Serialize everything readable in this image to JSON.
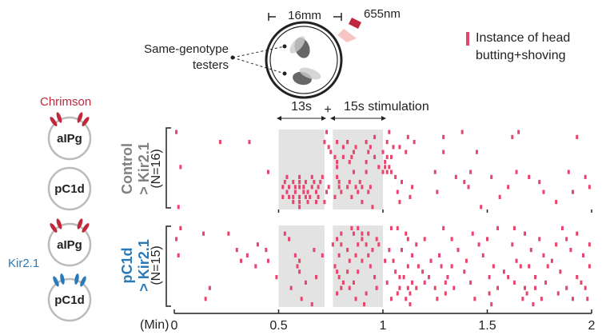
{
  "chart_data": {
    "type": "raster",
    "xlim": [
      0,
      2
    ],
    "xticks": [
      0,
      0.5,
      1,
      1.5,
      2
    ],
    "x_label": "(Min)",
    "shaded": [
      [
        0.5,
        0.72
      ],
      [
        0.76,
        1
      ]
    ],
    "color": "#e8456e",
    "annotations": {
      "window_1": "13s",
      "plus": "+",
      "window_2": "15s stimulation"
    },
    "legend": [
      "Instance of head",
      "butting+shoving"
    ],
    "panels": [
      {
        "label": [
          "Control",
          "> Kir2.1"
        ],
        "n_label": "(N=16)",
        "rows": [
          [
            0.01,
            0.73,
            1.03,
            1.38,
            1.65
          ],
          [
            0.96,
            1.12,
            1.29,
            1.62,
            1.93
          ],
          [
            0.22,
            0.36,
            0.72,
            0.78,
            0.83,
            0.92,
            1.02,
            1.15
          ],
          [
            0.74,
            0.81,
            0.87,
            0.94,
            1.05,
            1.08
          ],
          [
            0.75,
            0.86,
            0.93,
            1.0,
            1.11,
            1.29,
            1.45
          ],
          [
            0.77,
            0.81,
            0.85,
            0.96,
            1.02,
            1.04
          ],
          [
            0.78,
            0.84,
            0.92,
            1.01
          ],
          [
            0.03,
            0.78,
            0.98,
            1.01,
            1.03
          ],
          [
            0.45,
            0.86,
            0.92,
            1.0,
            1.02,
            1.04,
            1.25,
            1.42,
            1.64,
            1.89
          ],
          [
            0.54,
            0.6,
            0.66,
            0.71,
            0.78,
            1.06,
            1.35,
            1.52,
            1.7,
            1.97
          ],
          [
            0.53,
            0.57,
            0.6,
            0.63,
            0.67,
            0.7,
            0.79,
            0.84,
            0.89,
            1.09,
            1.39,
            1.75
          ],
          [
            0.52,
            0.55,
            0.58,
            0.6,
            0.62,
            0.66,
            0.69,
            0.74,
            0.79,
            0.83,
            0.87,
            0.9,
            0.94,
            1.14,
            1.41,
            1.6,
            1.99
          ],
          [
            0.54,
            0.58,
            0.62,
            0.64,
            0.68,
            0.73,
            0.8,
            0.88,
            0.93,
            1.07,
            1.26,
            1.77,
            1.91
          ],
          [
            0.52,
            0.55,
            0.57,
            0.6,
            0.63,
            0.65,
            0.69,
            0.77,
            0.85,
            1.13,
            1.56
          ],
          [
            0.57,
            0.6,
            0.64,
            0.68,
            0.72,
            0.9,
            1.08,
            1.83
          ],
          [
            0.02,
            0.6,
            0.95,
            1.47
          ]
        ]
      },
      {
        "label": [
          "pC1d",
          "> Kir2.1"
        ],
        "n_label": "(N=15)",
        "rows": [
          [
            0.03,
            0.85,
            0.88,
            1.04,
            1.07,
            1.29,
            1.55,
            1.63,
            1.86
          ],
          [
            0.14,
            0.26,
            0.53,
            0.8,
            0.86,
            0.9,
            0.93,
            1.11,
            1.43,
            1.68,
            1.93
          ],
          [
            0.01,
            0.55,
            0.78,
            0.9,
            0.97,
            1.12,
            1.2,
            1.33,
            1.5,
            1.75,
            1.88
          ],
          [
            0.4,
            0.76,
            0.8,
            0.88,
            0.92,
            0.98,
            1.16,
            1.46,
            1.62,
            1.83,
            1.99
          ],
          [
            0.3,
            0.44,
            0.67,
            0.83,
            0.95,
            1.03,
            1.09,
            1.36,
            1.71,
            1.9
          ],
          [
            0.02,
            0.35,
            0.58,
            0.71,
            0.79,
            0.87,
            0.93,
            1.14,
            1.27,
            1.48,
            1.77,
            1.96
          ],
          [
            0.32,
            0.45,
            0.6,
            0.84,
            0.9,
            1.01,
            1.05,
            1.23,
            1.4,
            1.64,
            1.81
          ],
          [
            0.39,
            0.59,
            0.77,
            0.94,
            1.12,
            1.17,
            1.28,
            1.33,
            1.53,
            1.66,
            1.7,
            1.79,
            1.99
          ],
          [
            0.6,
            0.78,
            0.83,
            0.88,
            1.06,
            1.19,
            1.39,
            1.58,
            1.85
          ],
          [
            0.49,
            0.68,
            0.79,
            0.96,
            1.08,
            1.1,
            1.22,
            1.31,
            1.51,
            1.6,
            1.73,
            1.93
          ],
          [
            0.63,
            0.81,
            0.86,
            1.02,
            1.14,
            1.2,
            1.3,
            1.42,
            1.63,
            1.78,
            1.95
          ],
          [
            0.17,
            0.56,
            0.8,
            0.84,
            0.97,
            1.08,
            1.12,
            1.16,
            1.25,
            1.34,
            1.55,
            1.68,
            1.73,
            1.88,
            1.97
          ],
          [
            0.78,
            0.92,
            1.07,
            1.13,
            1.3,
            1.51,
            1.69,
            1.84
          ],
          [
            0.15,
            0.61,
            0.87,
            1.04,
            1.11,
            1.26,
            1.44,
            1.67,
            1.76,
            1.91,
            1.98
          ],
          [
            0.66,
            0.91,
            1.13,
            1.52,
            1.72
          ]
        ]
      }
    ]
  },
  "schematic": {
    "diameter": "16mm",
    "wavelength": "655nm",
    "testers": [
      "Same-genotype",
      "testers"
    ]
  },
  "genotypes": [
    {
      "effector": "Chrimson",
      "neurons": [
        "aIPg",
        "pC1d"
      ]
    },
    {
      "effector": "Kir2.1",
      "neurons": [
        "aIPg",
        "pC1d"
      ]
    }
  ]
}
